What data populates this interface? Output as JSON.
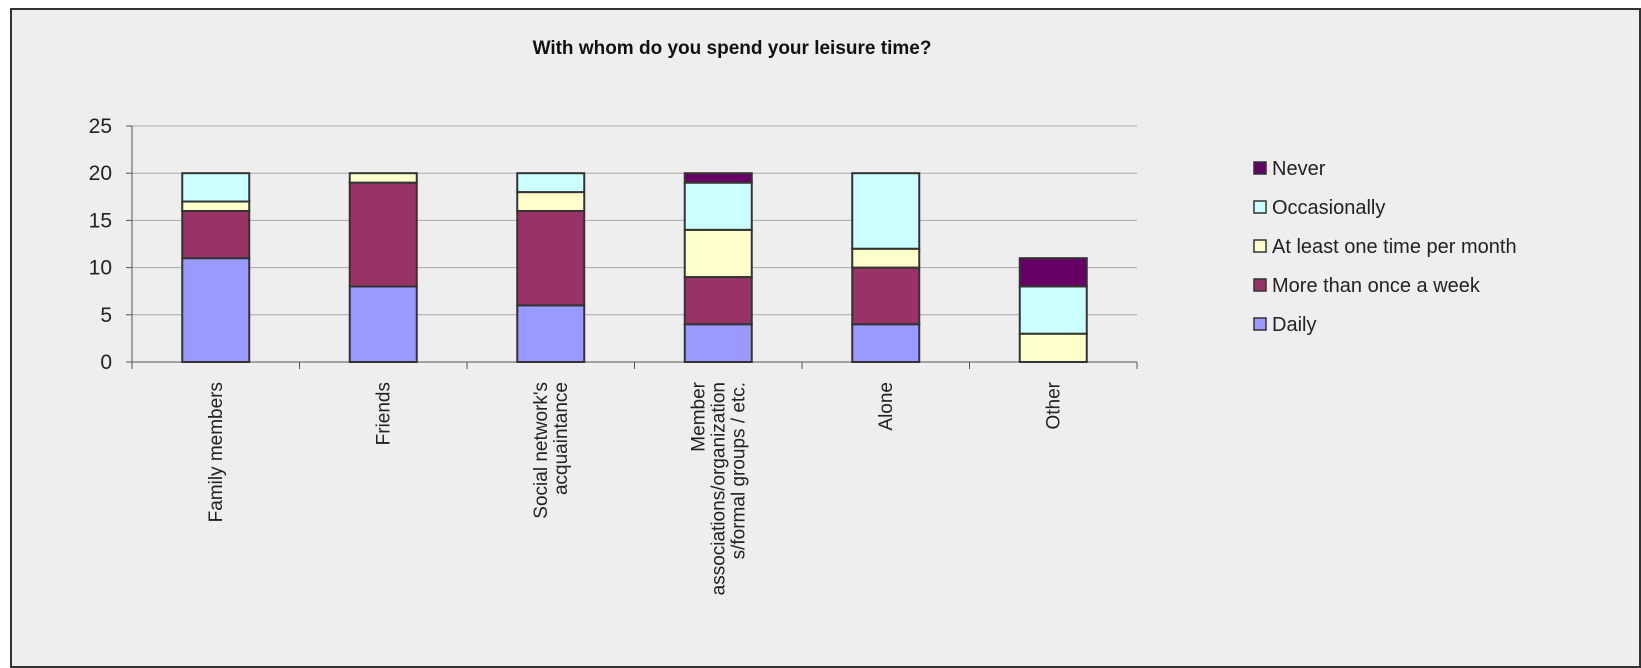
{
  "chart_data": {
    "type": "bar",
    "stacked": true,
    "title": "With whom do you spend your leisure time?",
    "categories": [
      [
        "Family members"
      ],
      [
        "Friends"
      ],
      [
        "Social network's",
        "acquaintance"
      ],
      [
        "Member",
        "associations/organization",
        "s/formal groups / etc."
      ],
      [
        "Alone"
      ],
      [
        "Other"
      ]
    ],
    "ylim": [
      0,
      25
    ],
    "yticks": [
      0,
      5,
      10,
      15,
      20,
      25
    ],
    "grid": true,
    "legend_position": "right",
    "series": [
      {
        "name": "Daily",
        "color": "#9999ff",
        "values": [
          11,
          8,
          6,
          4,
          4,
          0
        ]
      },
      {
        "name": "More than once a week",
        "color": "#993366",
        "values": [
          5,
          11,
          10,
          5,
          6,
          0
        ]
      },
      {
        "name": "At least one time per month",
        "color": "#ffffcc",
        "values": [
          1,
          1,
          2,
          5,
          2,
          3
        ]
      },
      {
        "name": "Occasionally",
        "color": "#ccffff",
        "values": [
          3,
          0,
          2,
          5,
          8,
          5
        ]
      },
      {
        "name": "Never",
        "color": "#660066",
        "values": [
          0,
          0,
          0,
          1,
          0,
          3
        ]
      }
    ],
    "legend_order": [
      "Never",
      "Occasionally",
      "At least one time per month",
      "More than once a week",
      "Daily"
    ]
  }
}
